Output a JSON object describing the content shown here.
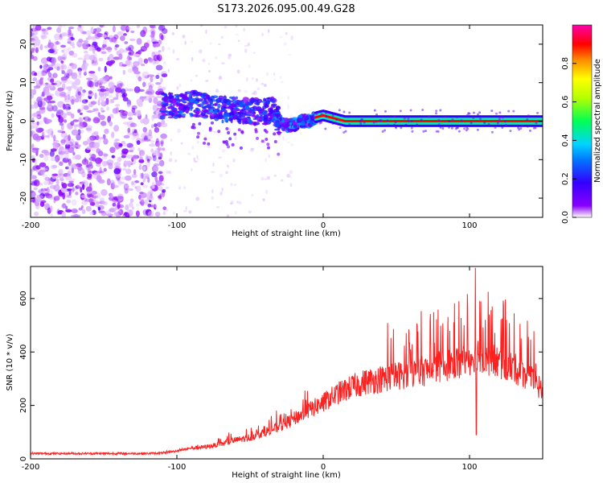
{
  "chart_data": [
    {
      "type": "heatmap",
      "title": "S173.2026.095.00.49.G28",
      "xlabel": "Height of straight line (km)",
      "ylabel": "Frequency (Hz)",
      "xlim": [
        -200,
        150
      ],
      "ylim": [
        -25,
        25
      ],
      "xticks": [
        -200,
        -100,
        0,
        100
      ],
      "yticks": [
        -20,
        -10,
        0,
        10,
        20
      ],
      "colorbar": {
        "label": "Normalized spectral amplitude",
        "range": [
          0,
          1
        ],
        "ticks": [
          0.0,
          0.2,
          0.4,
          0.6,
          0.8
        ],
        "tick_labels": [
          "0.0",
          "0.2",
          "0.4",
          "0.6",
          "0.8"
        ],
        "colormap": [
          "#ffffff",
          "#8a00ff",
          "#3300ff",
          "#0077ff",
          "#00d4ff",
          "#00ff55",
          "#b4ff00",
          "#ffff00",
          "#ff8800",
          "#ff0000",
          "#ff00aa"
        ]
      },
      "signal_track": {
        "description_points_x": [
          -110,
          -100,
          -90,
          -80,
          -70,
          -60,
          -50,
          -40,
          -35,
          -30,
          -25,
          -20,
          -15,
          -10,
          -5,
          0,
          5,
          10,
          15,
          20,
          150
        ],
        "frequency_hz": [
          4,
          4,
          4.5,
          4,
          3,
          3,
          2.5,
          2.5,
          3,
          0,
          -1,
          -1,
          0,
          0,
          1,
          1.5,
          1,
          0.5,
          0,
          0,
          0
        ],
        "strong_band_start_km": -5,
        "strong_band_amplitude": 0.9
      }
    },
    {
      "type": "line",
      "xlabel": "Height of straight line (km)",
      "ylabel": "SNR (10 * v/v)",
      "xlim": [
        -200,
        150
      ],
      "ylim": [
        0,
        720
      ],
      "xticks": [
        -200,
        -100,
        0,
        100
      ],
      "yticks": [
        0,
        200,
        400,
        600
      ],
      "color": "#ff2020",
      "series": [
        {
          "name": "SNR",
          "x": [
            -200,
            -180,
            -160,
            -140,
            -120,
            -110,
            -100,
            -90,
            -80,
            -70,
            -60,
            -50,
            -40,
            -30,
            -20,
            -10,
            0,
            10,
            20,
            30,
            40,
            50,
            60,
            70,
            80,
            90,
            100,
            105,
            110,
            120,
            130,
            140,
            150
          ],
          "y": [
            20,
            20,
            20,
            20,
            20,
            22,
            30,
            40,
            45,
            55,
            70,
            80,
            100,
            120,
            150,
            180,
            210,
            245,
            270,
            290,
            300,
            310,
            320,
            330,
            345,
            360,
            375,
            400,
            380,
            360,
            340,
            310,
            250
          ]
        }
      ],
      "annotations": {
        "peak": {
          "x": 104,
          "y": 715
        },
        "dip": {
          "x": 104,
          "y": 90
        }
      }
    }
  ]
}
